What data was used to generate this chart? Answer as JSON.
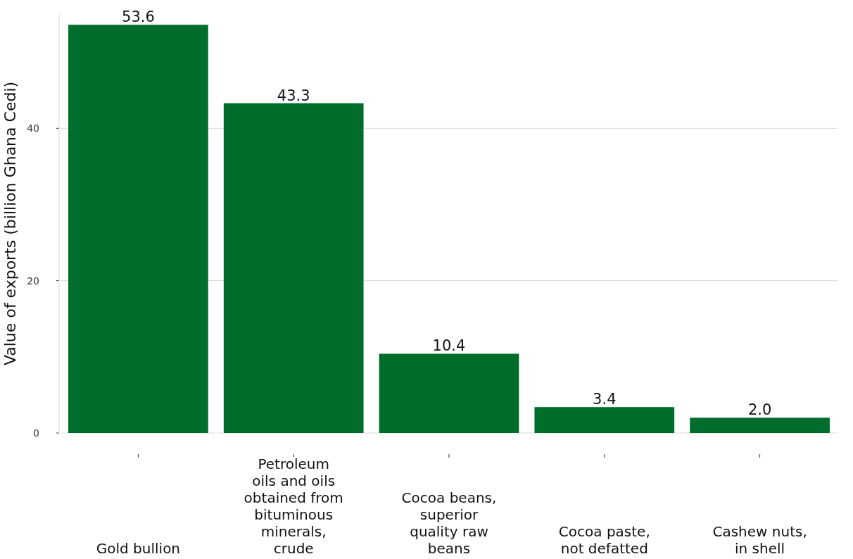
{
  "chart_data": {
    "type": "bar",
    "ylabel": "Value of exports (billion Ghana Cedi)",
    "categories": [
      "Gold bullion",
      "Petroleum oils and oils obtained from bituminous minerals, crude",
      "Cocoa beans, superior quality raw beans",
      "Cocoa paste, not defatted",
      "Cashew nuts, in shell"
    ],
    "values": [
      53.6,
      43.3,
      10.4,
      3.4,
      2.0
    ],
    "value_labels": [
      "53.6",
      "43.3",
      "10.4",
      "3.4",
      "2.0"
    ],
    "color": "#006d2c",
    "ylim": [
      0,
      55
    ],
    "yticks": [
      0,
      20,
      40
    ],
    "grid": "y"
  }
}
